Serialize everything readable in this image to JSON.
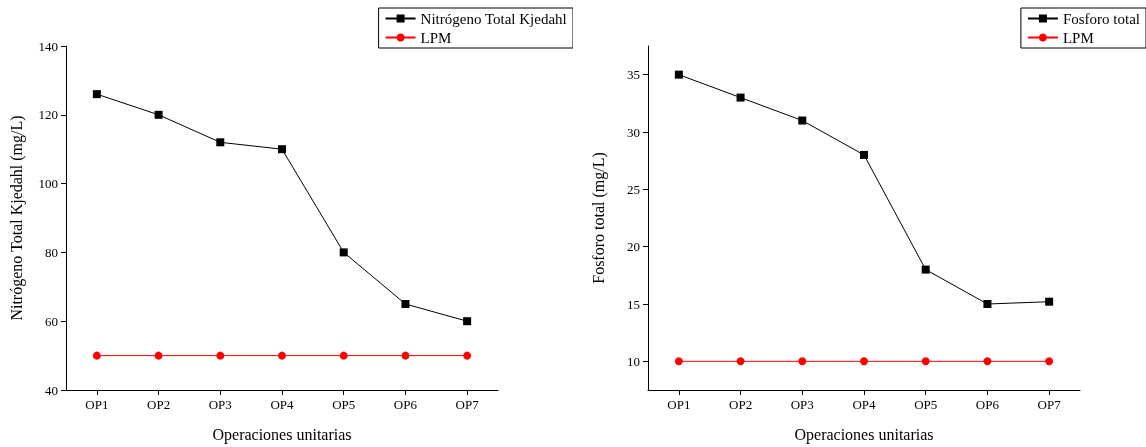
{
  "chart_data": [
    {
      "type": "line",
      "xlabel": "Operaciones unitarias",
      "ylabel": "Nitrógeno Total Kjedahl (mg/L)",
      "categories": [
        "OP1",
        "OP2",
        "OP3",
        "OP4",
        "OP5",
        "OP6",
        "OP7"
      ],
      "series": [
        {
          "name": "Nitrógeno Total Kjedahl",
          "color": "#000000",
          "marker": "square",
          "values": [
            126,
            120,
            112,
            110,
            80,
            65,
            60
          ]
        },
        {
          "name": "LPM",
          "color": "#ff0000",
          "marker": "circle",
          "values": [
            50,
            50,
            50,
            50,
            50,
            50,
            50
          ]
        }
      ],
      "ylim": [
        40,
        140
      ],
      "yticks": [
        40,
        60,
        80,
        100,
        120,
        140
      ],
      "grid": false,
      "legend": "top right",
      "line_style": "solid"
    },
    {
      "type": "line",
      "xlabel": "Operaciones unitarias",
      "ylabel": "Fosforo total (mg/L)",
      "categories": [
        "OP1",
        "OP2",
        "OP3",
        "OP4",
        "OP5",
        "OP6",
        "OP7"
      ],
      "series": [
        {
          "name": "Fosforo total",
          "color": "#000000",
          "marker": "square",
          "values": [
            35,
            33,
            31,
            28,
            18,
            15,
            15.2
          ]
        },
        {
          "name": "LPM",
          "color": "#ff0000",
          "marker": "circle",
          "values": [
            10,
            10,
            10,
            10,
            10,
            10,
            10
          ]
        }
      ],
      "ylim": [
        7.5,
        37.5
      ],
      "yticks": [
        10,
        15,
        20,
        25,
        30,
        35
      ],
      "grid": false,
      "legend": "top right",
      "line_style": "solid"
    }
  ]
}
